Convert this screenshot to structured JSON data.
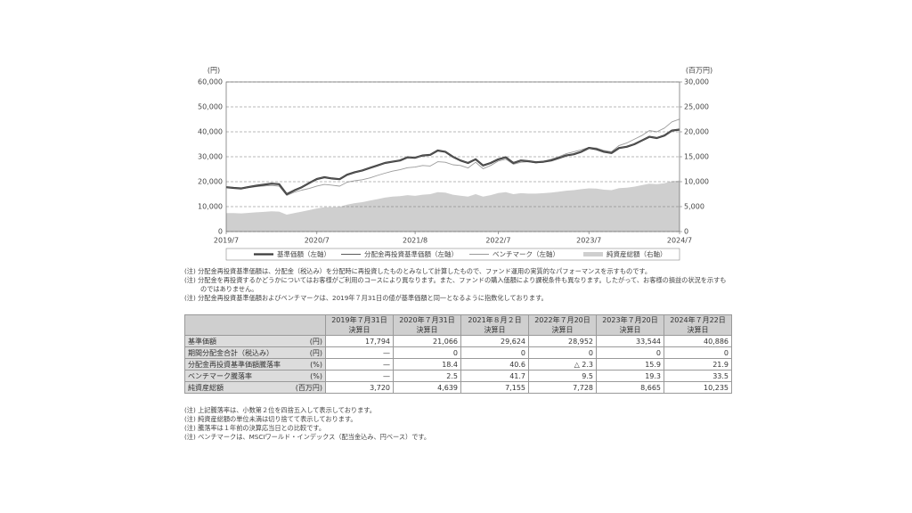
{
  "chart_data": {
    "type": "line",
    "y_label": "(円)",
    "y2_label": "(百万円)",
    "categories": [
      "2019/7",
      null,
      null,
      null,
      null,
      null,
      null,
      null,
      null,
      null,
      null,
      null,
      "2020/7",
      null,
      null,
      null,
      null,
      null,
      null,
      null,
      null,
      null,
      null,
      null,
      null,
      "2021/8",
      null,
      null,
      null,
      null,
      null,
      null,
      null,
      null,
      null,
      null,
      "2022/7",
      null,
      null,
      null,
      null,
      null,
      null,
      null,
      null,
      null,
      null,
      null,
      "2023/7",
      null,
      null,
      null,
      null,
      null,
      null,
      null,
      null,
      null,
      null,
      null,
      "2024/7"
    ],
    "ylim": [
      0,
      60000
    ],
    "yticks": [
      0,
      {
        "value": 10000,
        "label": "10,000"
      },
      {
        "value": 20000,
        "label": "20,000"
      },
      {
        "value": 30000,
        "label": "30,000"
      },
      {
        "value": 40000,
        "label": "40,000"
      },
      {
        "value": 50000,
        "label": "50,000"
      },
      {
        "value": 60000,
        "label": "60,000"
      }
    ],
    "y2lim": [
      0,
      30000
    ],
    "y2ticks": [
      0,
      {
        "value": 5000,
        "label": "5,000"
      },
      {
        "value": 10000,
        "label": "10,000"
      },
      {
        "value": 15000,
        "label": "15,000"
      },
      {
        "value": 20000,
        "label": "20,000"
      },
      {
        "value": 25000,
        "label": "25,000"
      },
      {
        "value": 30000,
        "label": "30,000"
      }
    ],
    "grid": true,
    "series": [
      {
        "name": "純資産総額（右軸）",
        "color": "#cfcfcf",
        "axis": "y2",
        "kind": "area",
        "values": [
          3720,
          3700,
          3650,
          3750,
          3850,
          3950,
          4050,
          4000,
          3400,
          3700,
          4000,
          4300,
          4639,
          4900,
          4900,
          4950,
          5400,
          5700,
          5900,
          6200,
          6500,
          6800,
          7000,
          7100,
          7300,
          7155,
          7400,
          7500,
          7900,
          7800,
          7400,
          7200,
          7000,
          7500,
          7000,
          7300,
          7728,
          7900,
          7500,
          7700,
          7600,
          7600,
          7700,
          7800,
          8000,
          8200,
          8300,
          8500,
          8665,
          8600,
          8400,
          8300,
          8700,
          8800,
          9000,
          9300,
          9600,
          9500,
          9700,
          10100,
          10235
        ]
      },
      {
        "name": "ベンチマーク（左軸）",
        "color": "#9a9a9a",
        "kind": "line",
        "values": [
          17794,
          17400,
          17200,
          17600,
          18000,
          18300,
          18500,
          18200,
          14500,
          15800,
          16600,
          17300,
          18239,
          18900,
          18600,
          18200,
          19800,
          20400,
          20800,
          21500,
          22500,
          23400,
          24200,
          24800,
          25600,
          25843,
          26500,
          26300,
          28000,
          27800,
          26800,
          26500,
          25500,
          27800,
          25200,
          26500,
          28300,
          29000,
          27000,
          27800,
          28000,
          27500,
          28200,
          29000,
          30000,
          31200,
          32000,
          32800,
          33760,
          33500,
          32500,
          32000,
          34500,
          35500,
          37000,
          38500,
          40500,
          40000,
          41500,
          44000,
          45070
        ]
      },
      {
        "name": "基準価額（左軸）",
        "color": "#3a3a3a",
        "kind": "line",
        "values": [
          17794,
          17500,
          17300,
          17900,
          18400,
          18800,
          19200,
          19000,
          15000,
          16500,
          17800,
          19500,
          21066,
          21800,
          21300,
          21000,
          22800,
          23800,
          24500,
          25500,
          26500,
          27500,
          28000,
          28500,
          29800,
          29624,
          30500,
          30800,
          32500,
          32000,
          30000,
          28500,
          27500,
          29000,
          26500,
          27500,
          28952,
          29800,
          27500,
          28500,
          28200,
          27800,
          28000,
          28500,
          29500,
          30500,
          31000,
          32000,
          33544,
          33000,
          32000,
          31500,
          33500,
          34000,
          35000,
          36500,
          38000,
          37500,
          38500,
          40500,
          40886
        ]
      },
      {
        "name": "分配金再投資基準価額（左軸）",
        "color": "#5a5a5a",
        "kind": "line",
        "values": [
          17794,
          17500,
          17300,
          17900,
          18400,
          18800,
          19200,
          19000,
          15000,
          16500,
          17800,
          19500,
          21066,
          21800,
          21300,
          21000,
          22800,
          23800,
          24500,
          25500,
          26500,
          27500,
          28000,
          28500,
          29800,
          29624,
          30500,
          30800,
          32500,
          32000,
          30000,
          28500,
          27500,
          29000,
          26500,
          27500,
          28952,
          29800,
          27500,
          28500,
          28200,
          27800,
          28000,
          28500,
          29500,
          30500,
          31000,
          32000,
          33544,
          33000,
          32000,
          31500,
          33500,
          34000,
          35000,
          36500,
          38000,
          37500,
          38500,
          40500,
          40886
        ]
      }
    ],
    "legend_order": [
      2,
      3,
      1,
      0
    ]
  },
  "notes": [
    "(注) 分配金再投資基準価額は、分配金（税込み）を分配時に再投資したものとみなして計算したもので、ファンド運用の実質的なパフォーマンスを示すものです。",
    "(注) 分配金を再投資するかどうかについてはお客様がご利用のコースにより異なります。また、ファンドの購入価額により課税条件も異なります。したがって、お客様の損益の状況を示すものではありません。",
    "(注) 分配金再投資基準価額およびベンチマークは、2019年７月31日の値が基準価額と同一となるように指数化しております。"
  ],
  "table": {
    "columns": [
      {
        "date": "2019年７月31日",
        "label": "決算日"
      },
      {
        "date": "2020年７月31日",
        "label": "決算日"
      },
      {
        "date": "2021年８月２日",
        "label": "決算日"
      },
      {
        "date": "2022年７月20日",
        "label": "決算日"
      },
      {
        "date": "2023年７月20日",
        "label": "決算日"
      },
      {
        "date": "2024年７月22日",
        "label": "決算日"
      }
    ],
    "rows": [
      {
        "label": "基準価額",
        "unit": "(円)",
        "cells": [
          "17,794",
          "21,066",
          "29,624",
          "28,952",
          "33,544",
          "40,886"
        ]
      },
      {
        "label": "期間分配金合計（税込み）",
        "unit": "(円)",
        "cells": [
          "—",
          "0",
          "0",
          "0",
          "0",
          "0"
        ]
      },
      {
        "label": "分配金再投資基準価額騰落率",
        "unit": "(%)",
        "cells": [
          "—",
          "18.4",
          "40.6",
          "△ 2.3",
          "15.9",
          "21.9"
        ]
      },
      {
        "label": "ベンチマーク騰落率",
        "unit": "(%)",
        "cells": [
          "—",
          "2.5",
          "41.7",
          "9.5",
          "19.3",
          "33.5"
        ]
      },
      {
        "label": "純資産総額",
        "unit": "(百万円)",
        "cells": [
          "3,720",
          "4,639",
          "7,155",
          "7,728",
          "8,665",
          "10,235"
        ]
      }
    ]
  },
  "footnotes": [
    "(注) 上記騰落率は、小数第２位を四捨五入して表示しております。",
    "(注) 純資産総額の単位未満は切り捨てて表示しております。",
    "(注) 騰落率は１年前の決算応当日との比較です。",
    "(注) ベンチマークは、MSCIワールド・インデックス（配当金込み、円ベース）です。"
  ]
}
